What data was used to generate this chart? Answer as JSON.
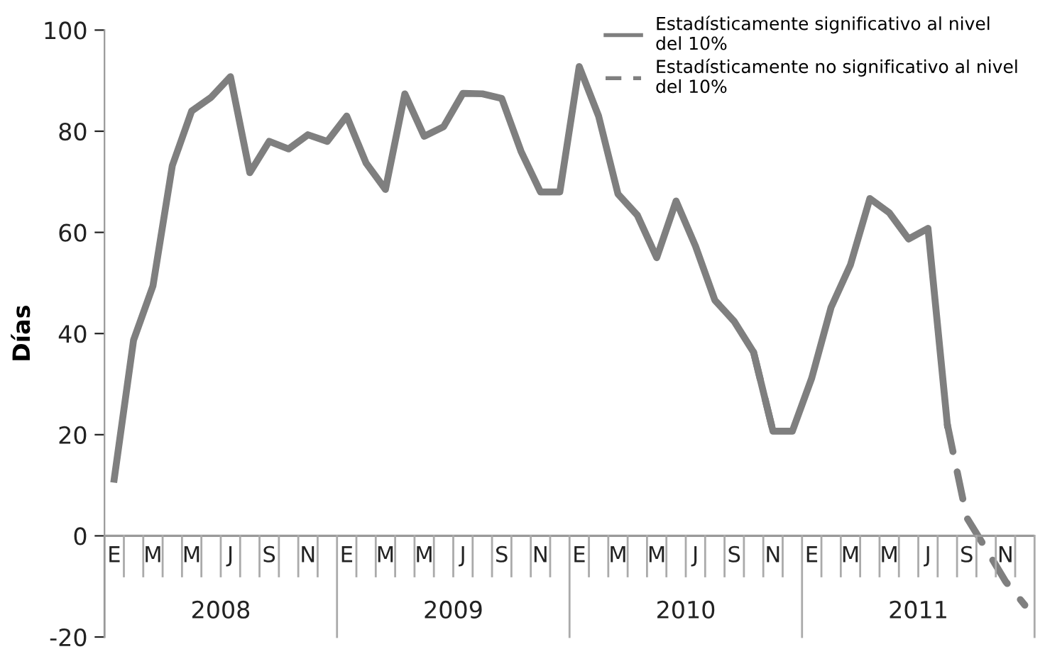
{
  "chart_data": {
    "type": "line",
    "ylabel": "Días",
    "categories": [
      "E",
      null,
      "M",
      null,
      "M",
      null,
      "J",
      null,
      "S",
      null,
      "N",
      null,
      "E",
      null,
      "M",
      null,
      "M",
      null,
      "J",
      null,
      "S",
      null,
      "N",
      null,
      "E",
      null,
      "M",
      null,
      "M",
      null,
      "J",
      null,
      "S",
      null,
      "N",
      null,
      "E",
      null,
      "M",
      null,
      "M",
      null,
      "J",
      null,
      "S",
      null,
      "N",
      null
    ],
    "annotations": [
      "2008",
      "2009",
      "2010",
      "2011"
    ],
    "series": [
      {
        "name": "Estadísticamente significativo al nivel\ndel 10%",
        "color": "#7f7f7f",
        "line_style": "solid",
        "values": [
          11.2,
          38.7,
          49.4,
          73.2,
          84,
          86.7,
          90.8,
          71.8,
          78,
          76.5,
          79.3,
          78,
          83,
          73.7,
          68.5,
          87.4,
          79,
          80.9,
          87.5,
          87.4,
          86.5,
          76,
          68,
          68,
          92.8,
          83,
          67.6,
          63.4,
          55,
          66.2,
          57.3,
          46.6,
          42.4,
          36.3,
          20.7,
          20.7,
          31.2,
          45.2,
          53.6,
          66.7,
          63.9,
          58.7,
          60.8,
          22,
          null,
          null,
          null,
          null
        ]
      },
      {
        "name": "Estadísticamente no significativo al nivel\ndel 10%",
        "color": "#7f7f7f",
        "line_style": "dashed",
        "values": [
          null,
          null,
          null,
          null,
          null,
          null,
          null,
          null,
          null,
          null,
          null,
          null,
          null,
          null,
          null,
          null,
          null,
          null,
          null,
          null,
          null,
          null,
          null,
          null,
          null,
          null,
          null,
          null,
          null,
          null,
          null,
          null,
          null,
          36.3,
          20.7,
          null,
          null,
          null,
          null,
          null,
          null,
          null,
          null,
          22,
          3.6,
          -2.6,
          -9,
          -13.7
        ]
      }
    ],
    "ylim": [
      -20,
      100
    ],
    "yticks": [
      -20,
      0,
      20,
      40,
      60,
      80,
      100
    ],
    "grid": false,
    "legend": "top right"
  }
}
